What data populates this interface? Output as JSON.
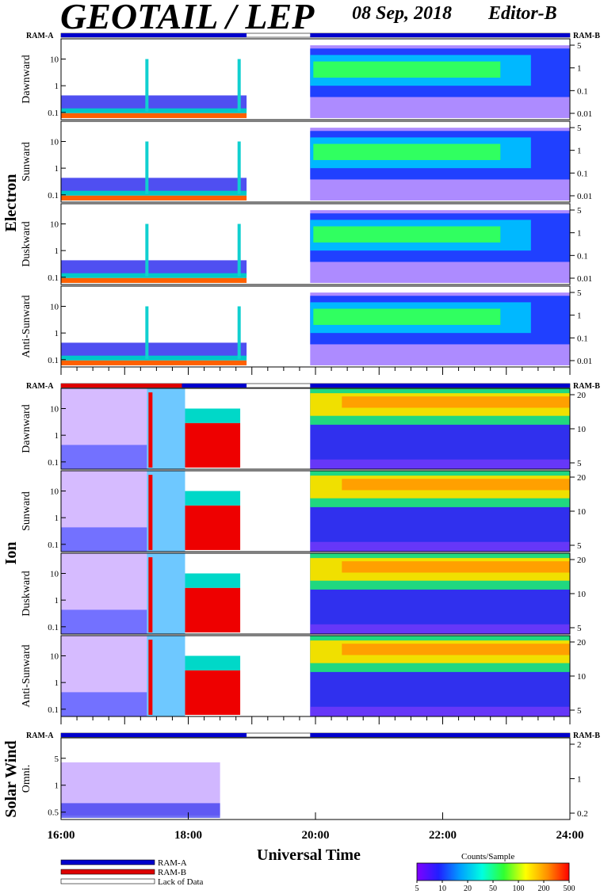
{
  "header": {
    "title": "GEOTAIL / LEP",
    "date": "08 Sep, 2018",
    "editor": "Editor-B"
  },
  "colors": {
    "ram_a": "#0000cc",
    "ram_b": "#dd0000",
    "lack_of_data": "#ffffff"
  },
  "mode_bar_labels": {
    "left": "RAM-A",
    "right": "RAM-B"
  },
  "groups": [
    {
      "id": "electron",
      "label": "Electron"
    },
    {
      "id": "ion",
      "label": "Ion"
    },
    {
      "id": "solar",
      "label": "Solar Wind"
    }
  ],
  "chart_data": {
    "type": "heatmap",
    "x_axis": {
      "range": [
        "16:00",
        "24:00"
      ],
      "ticks": [
        "16:00",
        "18:00",
        "20:00",
        "22:00",
        "24:00"
      ],
      "label": "Universal Time"
    },
    "data_gap": {
      "start": "18:55",
      "end": "19:55"
    },
    "panels": [
      {
        "id": "e-dawn",
        "group": "electron",
        "label": "Dawnward",
        "y_left_ticks": [
          "10",
          "1",
          "0.1"
        ],
        "y_right_ticks": [
          "5",
          "1",
          "0.1",
          "0.01"
        ]
      },
      {
        "id": "e-sun",
        "group": "electron",
        "label": "Sunward",
        "y_left_ticks": [
          "10",
          "1",
          "0.1"
        ],
        "y_right_ticks": [
          "5",
          "1",
          "0.1",
          "0.01"
        ]
      },
      {
        "id": "e-dusk",
        "group": "electron",
        "label": "Duskward",
        "y_left_ticks": [
          "10",
          "1",
          "0.1"
        ],
        "y_right_ticks": [
          "5",
          "1",
          "0.1",
          "0.01"
        ]
      },
      {
        "id": "e-anti",
        "group": "electron",
        "label": "Anti-Sunward",
        "y_left_ticks": [
          "10",
          "1",
          "0.1"
        ],
        "y_right_ticks": [
          "5",
          "1",
          "0.1",
          "0.01"
        ]
      },
      {
        "id": "i-dawn",
        "group": "ion",
        "label": "Dawnward",
        "y_left_ticks": [
          "10",
          "1",
          "0.1"
        ],
        "y_right_ticks": [
          "20",
          "10",
          "5"
        ]
      },
      {
        "id": "i-sun",
        "group": "ion",
        "label": "Sunward",
        "y_left_ticks": [
          "10",
          "1",
          "0.1"
        ],
        "y_right_ticks": [
          "20",
          "10",
          "5"
        ]
      },
      {
        "id": "i-dusk",
        "group": "ion",
        "label": "Duskward",
        "y_left_ticks": [
          "10",
          "1",
          "0.1"
        ],
        "y_right_ticks": [
          "20",
          "10",
          "5"
        ]
      },
      {
        "id": "i-anti",
        "group": "ion",
        "label": "Anti-Sunward",
        "y_left_ticks": [
          "10",
          "1",
          "0.1"
        ],
        "y_right_ticks": [
          "20",
          "10",
          "5"
        ]
      },
      {
        "id": "sw-omni",
        "group": "solar",
        "label": "Omni.",
        "y_left_ticks": [
          "5",
          "1",
          "0.5"
        ],
        "y_right_ticks": [
          "2",
          "1",
          "0.2"
        ]
      }
    ],
    "legend": {
      "items": [
        {
          "label": "RAM-A",
          "color": "#0000cc"
        },
        {
          "label": "RAM-B",
          "color": "#dd0000"
        },
        {
          "label": "Lack of Data",
          "color": "#ffffff"
        }
      ]
    },
    "colorbar": {
      "title": "Counts/Sample",
      "ticks": [
        "5",
        "10",
        "20",
        "50",
        "100",
        "200",
        "500"
      ],
      "colors": [
        "#8000ff",
        "#2020ff",
        "#00a0ff",
        "#00ffe0",
        "#30ff30",
        "#ffff00",
        "#ff9000",
        "#ff0000"
      ]
    }
  }
}
